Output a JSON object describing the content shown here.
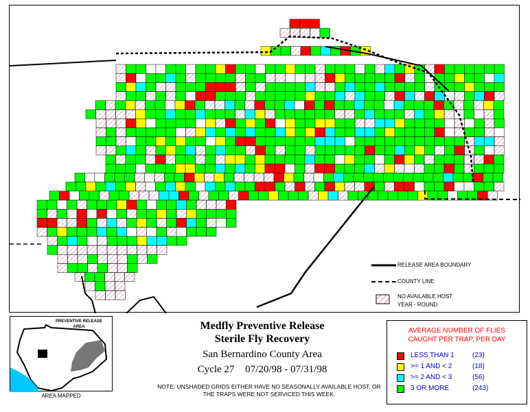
{
  "title": {
    "line1": "Medfly Preventive Release",
    "line2": "Sterile Fly Recovery",
    "line3": "San Bernardino County Area",
    "cycle": "Cycle 27",
    "dates": "07/20/98 - 07/31/98"
  },
  "note": "NOTE: UNSHADED GRIDS EITHER HAVE NO SEASONALLY AVAILABLE HOST, OR THE TRAPS WERE NOT SERVICED THIS WEEK.",
  "map_key": {
    "release_boundary": "RELEASE AREA BOUNDARY",
    "county_line": "COUNTY LINE",
    "no_host_line1": "NO AVAILABLE HOST",
    "no_host_line2": "YEAR - ROUND"
  },
  "inset": {
    "title_line1": "PREVENTIVE RELEASE",
    "title_line2": "AREA",
    "caption": "AREA MAPPED"
  },
  "legend": {
    "title_line1": "AVERAGE NUMBER OF FLIES",
    "title_line2": "CAUGHT PER TRAP, PER DAY",
    "items": [
      {
        "label": "LESS THAN 1",
        "count": "(23)",
        "color": "#ff0000"
      },
      {
        "label": ">= 1 AND < 2",
        "count": "(18)",
        "color": "#ffff00"
      },
      {
        "label": ">= 2 AND < 3",
        "count": "(56)",
        "color": "#00ffff"
      },
      {
        "label": "3 OR MORE",
        "count": "(243)",
        "color": "#00ff00"
      }
    ]
  },
  "colors": {
    "red": "#ff0000",
    "yellow": "#ffff00",
    "cyan": "#00ffff",
    "green": "#00ff00",
    "hatch": "#cc6699"
  }
}
